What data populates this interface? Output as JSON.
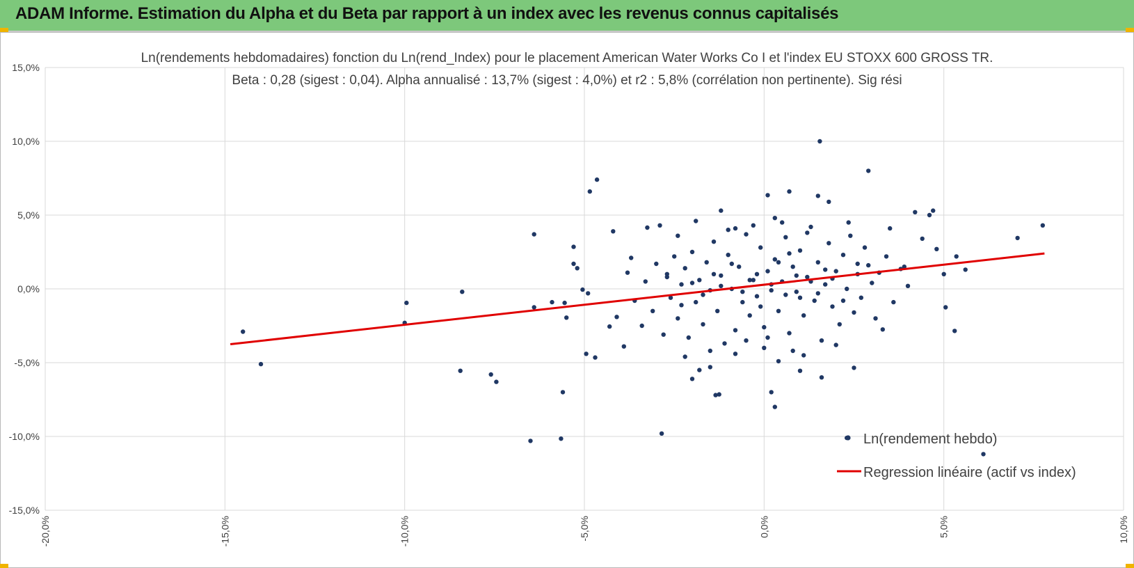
{
  "banner": {
    "title": "ADAM Informe. Estimation du Alpha et du Beta par rapport à un index avec les revenus connus capitalisés"
  },
  "colors": {
    "banner": "#7dc87b",
    "points": "#203864",
    "regression": "#e00000",
    "grid": "#d9d9d9",
    "corner": "#f0b400"
  },
  "chart_data": {
    "type": "scatter",
    "title_line1": "Ln(rendements hebdomadaires) fonction du Ln(rend_Index) pour le placement American Water Works Co I et l'index EU STOXX 600 GROSS TR.",
    "title_line2": "Beta : 0,28 (sigest : 0,04). Alpha annualisé : 13,7% (sigest : 4,0%) et r2 : 5,8% (corrélation non pertinente). Sig rési",
    "xlabel": "",
    "ylabel": "",
    "xlim": [
      -0.2,
      0.1
    ],
    "ylim": [
      -0.15,
      0.15
    ],
    "x_ticks": [
      "-20,0%",
      "-15,0%",
      "-10,0%",
      "-5,0%",
      "0,0%",
      "5,0%",
      "10,0%"
    ],
    "y_ticks": [
      "15,0%",
      "10,0%",
      "5,0%",
      "0,0%",
      "-5,0%",
      "-10,0%",
      "-15,0%"
    ],
    "grid": true,
    "legend": [
      "Ln(rendement hebdo)",
      "Regression linéaire (actif vs index)"
    ],
    "legend_position": "bottom-right",
    "regression": {
      "x": [
        -0.1485,
        0.078
      ],
      "y": [
        -0.0375,
        0.024
      ]
    },
    "series": [
      {
        "name": "Ln(rendement hebdo)",
        "points": [
          [
            -0.145,
            -0.029
          ],
          [
            -0.14,
            -0.051
          ],
          [
            -0.1,
            -0.023
          ],
          [
            -0.0995,
            -0.0095
          ],
          [
            -0.084,
            -0.002
          ],
          [
            -0.0845,
            -0.0555
          ],
          [
            -0.076,
            -0.058
          ],
          [
            -0.0745,
            -0.063
          ],
          [
            -0.065,
            -0.103
          ],
          [
            -0.064,
            -0.0125
          ],
          [
            -0.064,
            0.037
          ],
          [
            -0.059,
            -0.009
          ],
          [
            -0.0565,
            -0.1015
          ],
          [
            -0.056,
            -0.07
          ],
          [
            -0.0555,
            -0.0095
          ],
          [
            -0.055,
            -0.0195
          ],
          [
            -0.053,
            0.017
          ],
          [
            -0.052,
            0.014
          ],
          [
            -0.053,
            0.0285
          ],
          [
            -0.0505,
            -0.0005
          ],
          [
            -0.0495,
            -0.044
          ],
          [
            -0.049,
            -0.003
          ],
          [
            -0.0485,
            0.066
          ],
          [
            -0.047,
            -0.0465
          ],
          [
            -0.0465,
            0.074
          ],
          [
            -0.043,
            -0.0255
          ],
          [
            -0.042,
            0.039
          ],
          [
            -0.041,
            -0.019
          ],
          [
            -0.039,
            -0.039
          ],
          [
            -0.037,
            0.021
          ],
          [
            -0.034,
            -0.025
          ],
          [
            -0.0325,
            0.0415
          ],
          [
            -0.029,
            0.043
          ],
          [
            -0.0285,
            -0.098
          ],
          [
            -0.024,
            0.036
          ],
          [
            -0.022,
            -0.046
          ],
          [
            -0.02,
            -0.061
          ],
          [
            -0.019,
            0.046
          ],
          [
            -0.018,
            -0.055
          ],
          [
            -0.015,
            -0.053
          ],
          [
            -0.0135,
            -0.072
          ],
          [
            -0.0125,
            -0.0715
          ],
          [
            -0.012,
            0.053
          ],
          [
            -0.008,
            0.041
          ],
          [
            0.001,
            0.0635
          ],
          [
            0.001,
            -0.033
          ],
          [
            0.002,
            -0.07
          ],
          [
            0.003,
            -0.08
          ],
          [
            0.004,
            -0.049
          ],
          [
            0.007,
            0.066
          ],
          [
            0.01,
            -0.0555
          ],
          [
            0.015,
            0.063
          ],
          [
            0.0155,
            0.1
          ],
          [
            0.016,
            -0.06
          ],
          [
            0.018,
            0.059
          ],
          [
            0.023,
            -0.101
          ],
          [
            0.0235,
            0.045
          ],
          [
            0.025,
            -0.0535
          ],
          [
            0.029,
            0.08
          ],
          [
            0.033,
            -0.0275
          ],
          [
            0.035,
            0.041
          ],
          [
            0.038,
            0.0135
          ],
          [
            0.04,
            0.002
          ],
          [
            0.042,
            0.052
          ],
          [
            0.044,
            0.034
          ],
          [
            0.046,
            0.05
          ],
          [
            0.047,
            0.053
          ],
          [
            0.048,
            0.027
          ],
          [
            0.05,
            0.01
          ],
          [
            0.0505,
            -0.0125
          ],
          [
            0.053,
            -0.0285
          ],
          [
            0.0535,
            0.022
          ],
          [
            0.056,
            0.013
          ],
          [
            0.061,
            -0.112
          ],
          [
            0.0705,
            0.0345
          ],
          [
            0.0775,
            0.043
          ],
          [
            -0.038,
            0.011
          ],
          [
            -0.036,
            -0.008
          ],
          [
            -0.033,
            0.005
          ],
          [
            -0.031,
            -0.015
          ],
          [
            -0.03,
            0.017
          ],
          [
            -0.028,
            -0.031
          ],
          [
            -0.027,
            0.008
          ],
          [
            -0.026,
            -0.006
          ],
          [
            -0.025,
            0.022
          ],
          [
            -0.024,
            -0.02
          ],
          [
            -0.023,
            0.003
          ],
          [
            -0.022,
            0.014
          ],
          [
            -0.021,
            -0.033
          ],
          [
            -0.02,
            0.025
          ],
          [
            -0.019,
            -0.009
          ],
          [
            -0.018,
            0.006
          ],
          [
            -0.017,
            -0.024
          ],
          [
            -0.016,
            0.018
          ],
          [
            -0.015,
            -0.001
          ],
          [
            -0.014,
            0.032
          ],
          [
            -0.013,
            -0.015
          ],
          [
            -0.012,
            0.009
          ],
          [
            -0.011,
            -0.037
          ],
          [
            -0.01,
            0.023
          ],
          [
            -0.009,
            0.0
          ],
          [
            -0.008,
            -0.028
          ],
          [
            -0.007,
            0.015
          ],
          [
            -0.006,
            -0.009
          ],
          [
            -0.005,
            0.037
          ],
          [
            -0.004,
            -0.018
          ],
          [
            -0.003,
            0.006
          ],
          [
            -0.002,
            -0.005
          ],
          [
            -0.001,
            0.028
          ],
          [
            0.0,
            -0.026
          ],
          [
            0.001,
            0.012
          ],
          [
            0.002,
            -0.001
          ],
          [
            0.003,
            0.02
          ],
          [
            0.004,
            -0.015
          ],
          [
            0.005,
            0.005
          ],
          [
            0.006,
            0.035
          ],
          [
            0.007,
            -0.03
          ],
          [
            0.008,
            0.015
          ],
          [
            0.009,
            -0.002
          ],
          [
            0.01,
            0.026
          ],
          [
            0.011,
            -0.018
          ],
          [
            0.012,
            0.008
          ],
          [
            0.013,
            0.042
          ],
          [
            0.014,
            -0.008
          ],
          [
            0.015,
            0.018
          ],
          [
            0.016,
            -0.035
          ],
          [
            0.017,
            0.003
          ],
          [
            0.018,
            0.031
          ],
          [
            0.019,
            -0.012
          ],
          [
            0.02,
            0.012
          ],
          [
            0.021,
            -0.024
          ],
          [
            0.022,
            0.023
          ],
          [
            0.023,
            0.0
          ],
          [
            0.024,
            0.036
          ],
          [
            0.025,
            -0.016
          ],
          [
            0.026,
            0.017
          ],
          [
            0.027,
            -0.006
          ],
          [
            0.028,
            0.028
          ],
          [
            0.03,
            0.004
          ],
          [
            0.031,
            -0.02
          ],
          [
            0.032,
            0.011
          ],
          [
            0.034,
            0.022
          ],
          [
            0.036,
            -0.009
          ],
          [
            0.039,
            0.015
          ],
          [
            -0.005,
            -0.035
          ],
          [
            -0.003,
            0.043
          ],
          [
            0.0,
            -0.04
          ],
          [
            0.005,
            0.045
          ],
          [
            0.008,
            -0.042
          ],
          [
            0.012,
            0.038
          ],
          [
            -0.01,
            0.04
          ],
          [
            -0.015,
            -0.042
          ],
          [
            0.02,
            -0.038
          ],
          [
            -0.008,
            -0.044
          ],
          [
            0.003,
            0.048
          ],
          [
            0.011,
            -0.045
          ],
          [
            -0.002,
            0.01
          ],
          [
            0.002,
            0.003
          ],
          [
            0.006,
            -0.004
          ],
          [
            0.004,
            0.018
          ],
          [
            -0.004,
            0.006
          ],
          [
            0.009,
            0.009
          ],
          [
            -0.006,
            -0.002
          ],
          [
            0.013,
            0.005
          ],
          [
            0.015,
            -0.003
          ],
          [
            -0.012,
            0.002
          ],
          [
            0.007,
            0.024
          ],
          [
            -0.001,
            -0.012
          ],
          [
            0.01,
            -0.006
          ],
          [
            -0.009,
            0.017
          ],
          [
            0.017,
            0.013
          ],
          [
            -0.014,
            0.01
          ],
          [
            0.019,
            0.007
          ],
          [
            -0.017,
            -0.004
          ],
          [
            0.022,
            -0.008
          ],
          [
            -0.02,
            0.004
          ],
          [
            0.026,
            0.01
          ],
          [
            -0.023,
            -0.011
          ],
          [
            0.029,
            0.016
          ],
          [
            -0.027,
            0.01
          ]
        ]
      }
    ]
  }
}
